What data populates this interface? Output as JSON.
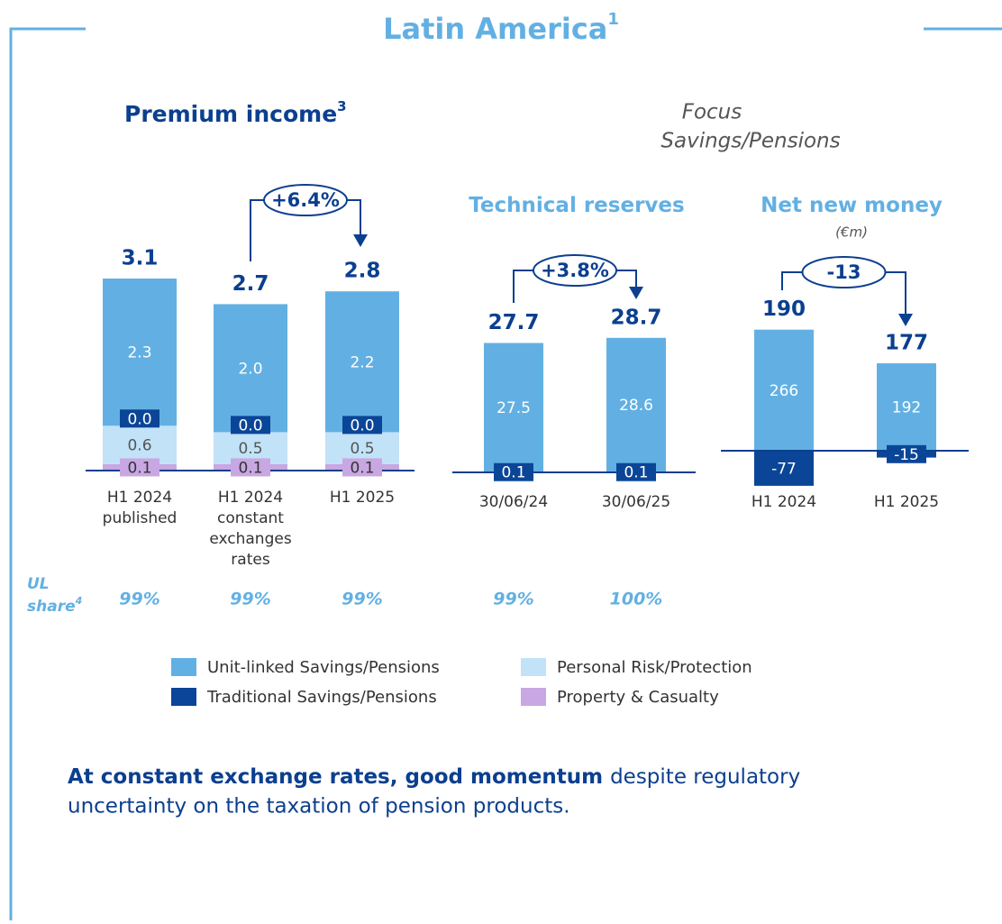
{
  "title": "Latin America",
  "title_sup": "1",
  "focus": [
    "Focus",
    "Savings/Pensions"
  ],
  "ul_share": {
    "label": [
      "UL",
      "share"
    ],
    "label_sup": "4",
    "values": [
      99,
      99,
      99,
      99,
      100
    ],
    "value_labels": [
      "99%",
      "99%",
      "99%",
      "99%",
      "100%"
    ]
  },
  "footer": {
    "bold": "At constant exchange rates, good momentum",
    "rest": "despite regulatory",
    "line2": "uncertainty on the taxation of pension products."
  },
  "chart_data": [
    {
      "type": "stacked_bar",
      "title": "Premium income",
      "title_sup": "3",
      "categories": [
        [
          "H1 2024",
          "published"
        ],
        [
          "H1 2024",
          "constant",
          "exchanges",
          "rates"
        ],
        [
          "H1 2025"
        ]
      ],
      "series": [
        {
          "name": "Unit-linked Savings/Pensions",
          "color": "#62b0e3",
          "values": [
            2.3,
            2.0,
            2.2
          ],
          "value_labels": [
            "2.3",
            "2.0",
            "2.2"
          ]
        },
        {
          "name": "Personal Risk/Protection",
          "color": "#c2e2f8",
          "values": [
            0.6,
            0.5,
            0.5
          ]
        },
        {
          "name": "Traditional Savings/Pensions",
          "color": "#0b4597",
          "values": [
            0,
            0,
            0
          ],
          "value_labels": [
            "0.0",
            "0.0",
            "0.0"
          ]
        },
        {
          "name": "Property & Casualty",
          "color": "#c8a7e2",
          "values": [
            0.1,
            0.1,
            0.1
          ]
        }
      ],
      "totals": [
        3.1,
        2.7,
        2.8
      ],
      "change_label": "+6.4%"
    },
    {
      "type": "stacked_bar",
      "title": "Technical reserves",
      "categories": [
        [
          "30/06/24"
        ],
        [
          "30/06/25"
        ]
      ],
      "series": [
        {
          "color": "#62b0e3",
          "values": [
            27.5,
            28.6
          ]
        },
        {
          "color": "#0b4597",
          "values": [
            0.1,
            0.1
          ]
        }
      ],
      "totals": [
        27.7,
        28.7
      ],
      "change_label": "+3.8%"
    },
    {
      "type": "stacked_bar",
      "title": "Net new money",
      "subtitle": "(€m)",
      "categories": [
        [
          "H1 2024"
        ],
        [
          "H1 2025"
        ]
      ],
      "series": [
        {
          "color": "#62b0e3",
          "values": [
            266,
            192
          ]
        },
        {
          "color": "#0b4597",
          "values": [
            -77,
            -15
          ]
        }
      ],
      "totals": [
        190,
        177
      ],
      "change_label": "-13"
    }
  ]
}
